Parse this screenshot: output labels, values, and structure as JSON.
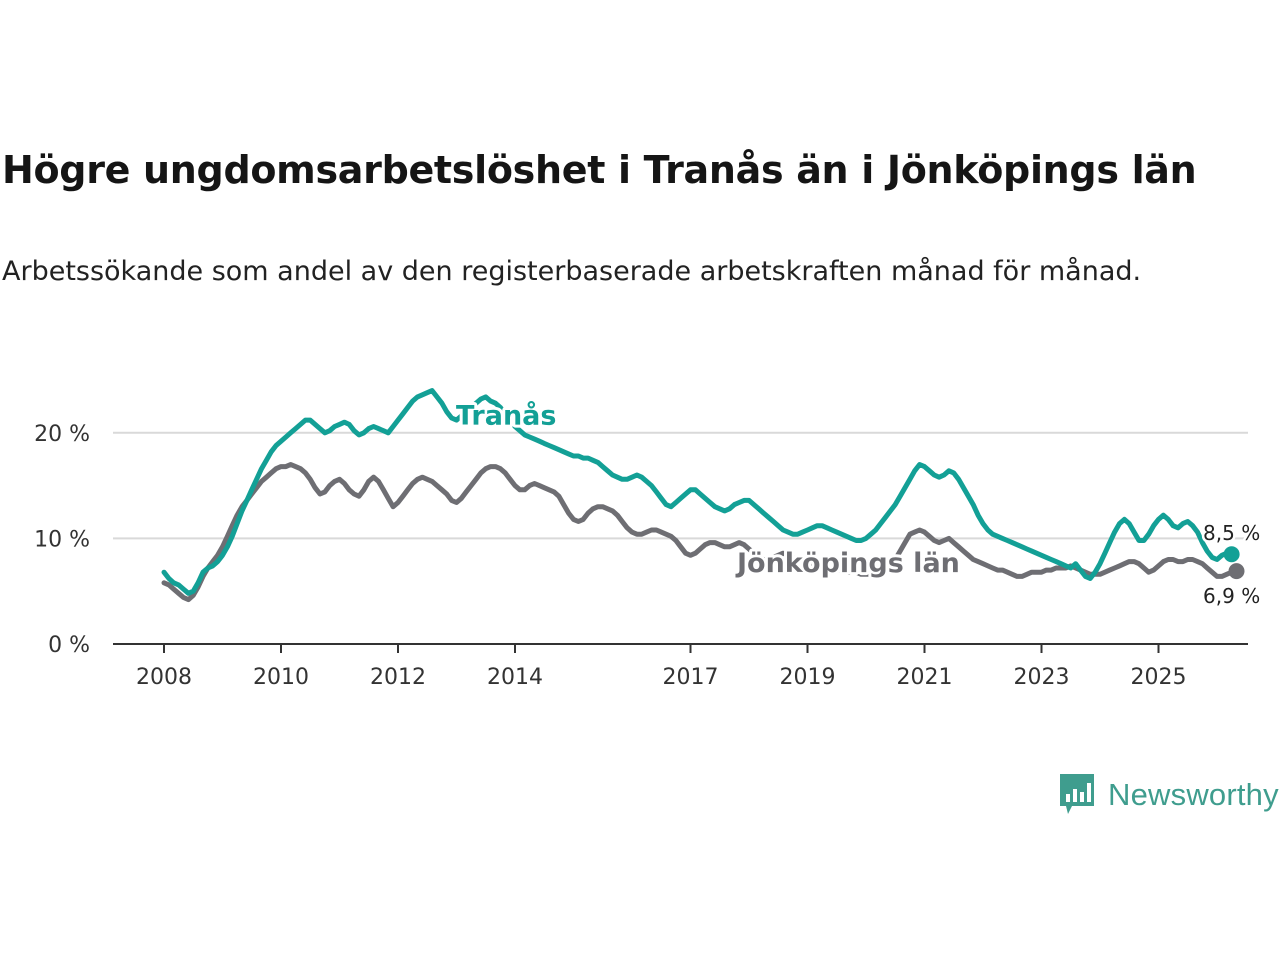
{
  "title": "Högre ungdomsarbetslöshet i Tranås än i Jönköpings län",
  "subtitle": "Arbetssökande som andel av den registerbaserade arbetskraften månad för månad.",
  "brand": {
    "name": "Newsworthy",
    "logo": "newsworthy-chart-logo-icon"
  },
  "colors": {
    "tranas": "#13a096",
    "lan": "#6e6e73",
    "grid": "#d9d9d9",
    "axis": "#333333"
  },
  "chart_data": {
    "type": "line",
    "title": "Högre ungdomsarbetslöshet i Tranås än i Jönköpings län",
    "xlabel": "",
    "ylabel": "",
    "xlim": [
      2008.0,
      2025.75
    ],
    "ylim": [
      0,
      25
    ],
    "x_ticks": [
      2008,
      2010,
      2012,
      2014,
      2017,
      2019,
      2021,
      2023,
      2025
    ],
    "x_tick_labels": [
      "2008",
      "2010",
      "2012",
      "2014",
      "2017",
      "2019",
      "2021",
      "2023",
      "2025"
    ],
    "y_ticks": [
      0,
      10,
      20
    ],
    "y_tick_labels": [
      "0 %",
      "10 %",
      "20 %"
    ],
    "grid": true,
    "series": [
      {
        "name": "Tranås",
        "label": "Tranås",
        "end_label": "8,5 %",
        "x_start": 2008.0,
        "step": 0.0833333,
        "values": [
          6.8,
          6.2,
          5.8,
          5.6,
          5.2,
          4.8,
          5.0,
          5.8,
          6.8,
          7.2,
          7.4,
          7.8,
          8.4,
          9.2,
          10.2,
          11.4,
          12.6,
          13.6,
          14.6,
          15.6,
          16.6,
          17.4,
          18.2,
          18.8,
          19.2,
          19.6,
          20.0,
          20.4,
          20.8,
          21.2,
          21.2,
          20.8,
          20.4,
          20.0,
          20.2,
          20.6,
          20.8,
          21.0,
          20.8,
          20.2,
          19.8,
          20.0,
          20.4,
          20.6,
          20.4,
          20.2,
          20.0,
          20.6,
          21.2,
          21.8,
          22.4,
          23.0,
          23.4,
          23.6,
          23.8,
          24.0,
          23.4,
          22.8,
          22.0,
          21.4,
          21.2,
          21.6,
          22.0,
          22.4,
          22.8,
          23.2,
          23.4,
          23.0,
          22.8,
          22.4,
          21.8,
          21.2,
          20.6,
          20.2,
          19.8,
          19.6,
          19.4,
          19.2,
          19.0,
          18.8,
          18.6,
          18.4,
          18.2,
          18.0,
          17.8,
          17.8,
          17.6,
          17.6,
          17.4,
          17.2,
          16.8,
          16.4,
          16.0,
          15.8,
          15.6,
          15.6,
          15.8,
          16.0,
          15.8,
          15.4,
          15.0,
          14.4,
          13.8,
          13.2,
          13.0,
          13.4,
          13.8,
          14.2,
          14.6,
          14.6,
          14.2,
          13.8,
          13.4,
          13.0,
          12.8,
          12.6,
          12.8,
          13.2,
          13.4,
          13.6,
          13.6,
          13.2,
          12.8,
          12.4,
          12.0,
          11.6,
          11.2,
          10.8,
          10.6,
          10.4,
          10.4,
          10.6,
          10.8,
          11.0,
          11.2,
          11.2,
          11.0,
          10.8,
          10.6,
          10.4,
          10.2,
          10.0,
          9.8,
          9.8,
          10.0,
          10.4,
          10.8,
          11.4,
          12.0,
          12.6,
          13.2,
          14.0,
          14.8,
          15.6,
          16.4,
          17.0,
          16.8,
          16.4,
          16.0,
          15.8,
          16.0,
          16.4,
          16.2,
          15.6,
          14.8,
          14.0,
          13.2,
          12.2,
          11.4,
          10.8,
          10.4,
          10.2,
          10.0,
          9.8,
          9.6,
          9.4,
          9.2,
          9.0,
          8.8,
          8.6,
          8.4,
          8.2,
          8.0,
          7.8,
          7.6,
          7.4,
          7.2,
          7.6,
          7.0,
          6.4,
          6.2,
          6.8,
          7.6,
          8.6,
          9.6,
          10.6,
          11.4,
          11.8,
          11.4,
          10.6,
          9.8,
          9.8,
          10.4,
          11.2,
          11.8,
          12.2,
          11.8,
          11.2,
          11.0,
          11.4,
          11.6,
          11.2,
          10.6,
          9.6,
          8.8,
          8.2,
          8.0,
          8.4,
          8.6,
          8.5
        ]
      },
      {
        "name": "Jönköpings län",
        "label": "Jönköpings län",
        "end_label": "6,9 %",
        "x_start": 2008.0,
        "step": 0.0833333,
        "values": [
          5.8,
          5.6,
          5.2,
          4.8,
          4.4,
          4.2,
          4.6,
          5.4,
          6.4,
          7.2,
          7.8,
          8.4,
          9.2,
          10.2,
          11.2,
          12.2,
          13.0,
          13.6,
          14.2,
          14.8,
          15.4,
          15.8,
          16.2,
          16.6,
          16.8,
          16.8,
          17.0,
          16.8,
          16.6,
          16.2,
          15.6,
          14.8,
          14.2,
          14.4,
          15.0,
          15.4,
          15.6,
          15.2,
          14.6,
          14.2,
          14.0,
          14.6,
          15.4,
          15.8,
          15.4,
          14.6,
          13.8,
          13.0,
          13.4,
          14.0,
          14.6,
          15.2,
          15.6,
          15.8,
          15.6,
          15.4,
          15.0,
          14.6,
          14.2,
          13.6,
          13.4,
          13.8,
          14.4,
          15.0,
          15.6,
          16.2,
          16.6,
          16.8,
          16.8,
          16.6,
          16.2,
          15.6,
          15.0,
          14.6,
          14.6,
          15.0,
          15.2,
          15.0,
          14.8,
          14.6,
          14.4,
          14.0,
          13.2,
          12.4,
          11.8,
          11.6,
          11.8,
          12.4,
          12.8,
          13.0,
          13.0,
          12.8,
          12.6,
          12.2,
          11.6,
          11.0,
          10.6,
          10.4,
          10.4,
          10.6,
          10.8,
          10.8,
          10.6,
          10.4,
          10.2,
          9.8,
          9.2,
          8.6,
          8.4,
          8.6,
          9.0,
          9.4,
          9.6,
          9.6,
          9.4,
          9.2,
          9.2,
          9.4,
          9.6,
          9.4,
          9.0,
          8.6,
          8.2,
          8.0,
          8.0,
          8.2,
          8.4,
          8.6,
          8.4,
          8.2,
          8.0,
          7.8,
          7.6,
          7.4,
          7.2,
          7.0,
          7.0,
          7.0,
          7.0,
          7.0,
          6.8,
          6.8,
          6.8,
          6.6,
          6.6,
          6.6,
          6.6,
          6.8,
          7.0,
          7.4,
          8.0,
          8.8,
          9.6,
          10.4,
          10.6,
          10.8,
          10.6,
          10.2,
          9.8,
          9.6,
          9.8,
          10.0,
          9.6,
          9.2,
          8.8,
          8.4,
          8.0,
          7.8,
          7.6,
          7.4,
          7.2,
          7.0,
          7.0,
          6.8,
          6.6,
          6.4,
          6.4,
          6.6,
          6.8,
          6.8,
          6.8,
          7.0,
          7.0,
          7.2,
          7.2,
          7.2,
          7.4,
          7.2,
          7.0,
          6.8,
          6.6,
          6.6,
          6.6,
          6.8,
          7.0,
          7.2,
          7.4,
          7.6,
          7.8,
          7.8,
          7.6,
          7.2,
          6.8,
          7.0,
          7.4,
          7.8,
          8.0,
          8.0,
          7.8,
          7.8,
          8.0,
          8.0,
          7.8,
          7.6,
          7.2,
          6.8,
          6.4,
          6.4,
          6.6,
          6.8,
          6.9
        ]
      }
    ]
  }
}
